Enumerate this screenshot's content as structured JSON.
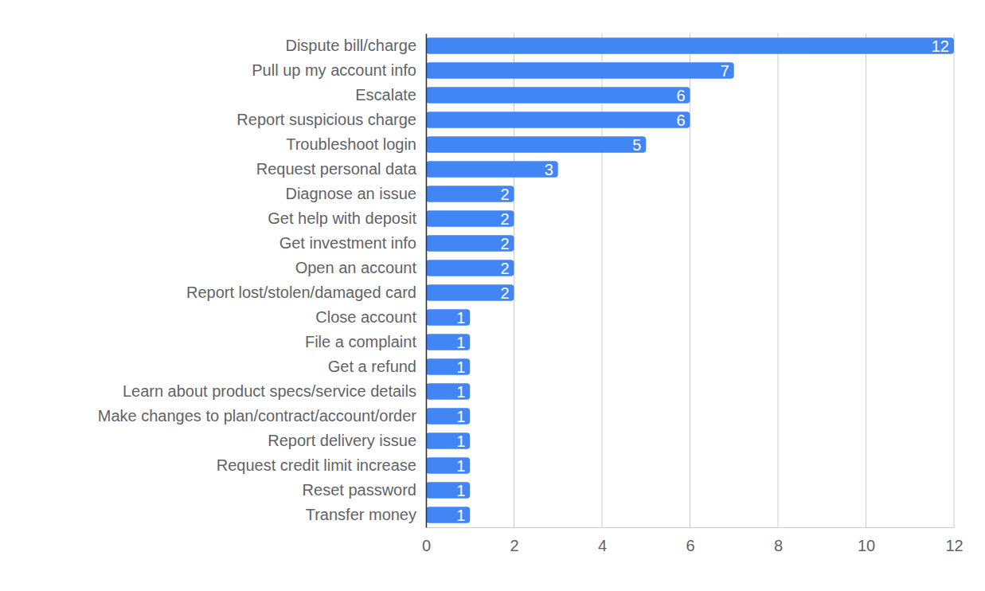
{
  "chart_data": {
    "type": "bar",
    "orientation": "horizontal",
    "categories": [
      "Dispute bill/charge",
      "Pull up my account info",
      "Escalate",
      "Report suspicious charge",
      "Troubleshoot login",
      "Request personal data",
      "Diagnose an issue",
      "Get help with deposit",
      "Get investment info",
      "Open an account",
      "Report lost/stolen/damaged card",
      "Close account",
      "File a complaint",
      "Get a refund",
      "Learn about product specs/service details",
      "Make changes to plan/contract/account/order",
      "Report delivery issue",
      "Request credit limit increase",
      "Reset password",
      "Transfer money"
    ],
    "values": [
      12,
      7,
      6,
      6,
      5,
      3,
      2,
      2,
      2,
      2,
      2,
      1,
      1,
      1,
      1,
      1,
      1,
      1,
      1,
      1
    ],
    "color": "#4285f4",
    "xlim": [
      0,
      12
    ],
    "xticks": [
      0,
      2,
      4,
      6,
      8,
      10,
      12
    ],
    "grid": true,
    "data_labels": true
  }
}
